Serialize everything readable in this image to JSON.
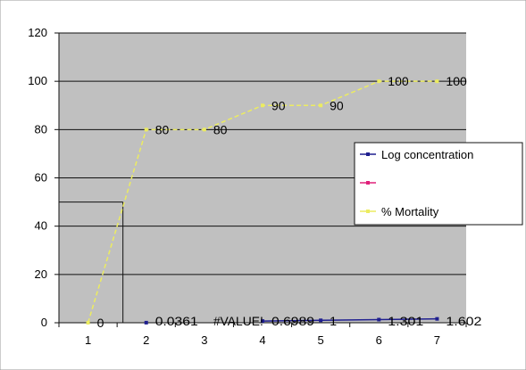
{
  "chart_data": {
    "type": "line",
    "title": "",
    "xlabel": "",
    "ylabel": "",
    "categories": [
      "1",
      "2",
      "3",
      "4",
      "5",
      "6",
      "7"
    ],
    "ylim": [
      0,
      120
    ],
    "y_ticks": [
      "0",
      "20",
      "40",
      "60",
      "80",
      "100",
      "120"
    ],
    "grid": "horizontal",
    "legend_position": "right",
    "plot_background": "#c0c0c0",
    "series": [
      {
        "name": "Log concentration",
        "color": "#1f1f8f",
        "values": [
          null,
          0.0361,
          null,
          0.6989,
          1,
          1.301,
          1.602
        ],
        "labels": [
          "",
          "0.0361",
          "#VALUE!",
          "0.6989",
          "1",
          "1.301",
          "1.602"
        ]
      },
      {
        "name": "",
        "color": "#e0207a",
        "values": [
          null,
          null,
          null,
          null,
          null,
          null,
          null
        ],
        "labels": [
          "",
          "",
          "",
          "",
          "",
          "",
          ""
        ]
      },
      {
        "name": "% Mortality",
        "color": "#ecec60",
        "values": [
          0,
          80,
          80,
          90,
          90,
          100,
          100
        ],
        "labels": [
          "0",
          "80",
          "80",
          "90",
          "90",
          "100",
          "100"
        ]
      }
    ],
    "annotation": {
      "type": "lc50-guide",
      "y_value": 50,
      "x_value": 1.6
    }
  }
}
